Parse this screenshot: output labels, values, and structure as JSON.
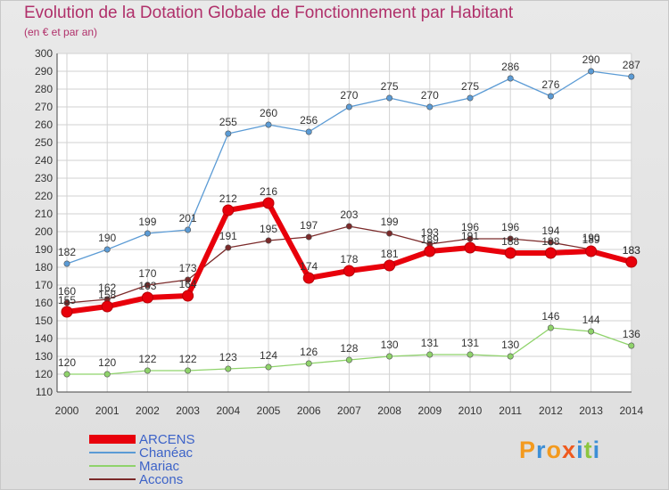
{
  "header": {
    "title": "Evolution de la Dotation Globale de Fonctionnement par Habitant",
    "subtitle": "(en € et par an)"
  },
  "logo": {
    "text": "Proxiti"
  },
  "chart_data": {
    "type": "line",
    "title": "Evolution de la Dotation Globale de Fonctionnement par Habitant",
    "subtitle": "(en € et par an)",
    "x": [
      "2000",
      "2001",
      "2002",
      "2003",
      "2004",
      "2005",
      "2006",
      "2007",
      "2008",
      "2009",
      "2010",
      "2011",
      "2012",
      "2013",
      "2014"
    ],
    "ylim": [
      110,
      300
    ],
    "ytick_step": 10,
    "grid": true,
    "legend_position": "bottom-left",
    "series": [
      {
        "name": "ARCENS",
        "color": "#e8000b",
        "values": [
          155,
          158,
          163,
          164,
          212,
          216,
          174,
          178,
          181,
          189,
          191,
          188,
          188,
          189,
          183
        ]
      },
      {
        "name": "Chanéac",
        "color": "#5b9bd5",
        "values": [
          182,
          190,
          199,
          201,
          255,
          260,
          256,
          270,
          275,
          270,
          275,
          286,
          276,
          290,
          287
        ]
      },
      {
        "name": "Mariac",
        "color": "#8fd36b",
        "values": [
          120,
          120,
          122,
          122,
          123,
          124,
          126,
          128,
          130,
          131,
          131,
          130,
          146,
          144,
          136
        ]
      },
      {
        "name": "Accons",
        "color": "#7b2a2a",
        "values": [
          160,
          162,
          170,
          173,
          191,
          195,
          197,
          203,
          199,
          193,
          196,
          196,
          194,
          190,
          183
        ]
      }
    ]
  }
}
